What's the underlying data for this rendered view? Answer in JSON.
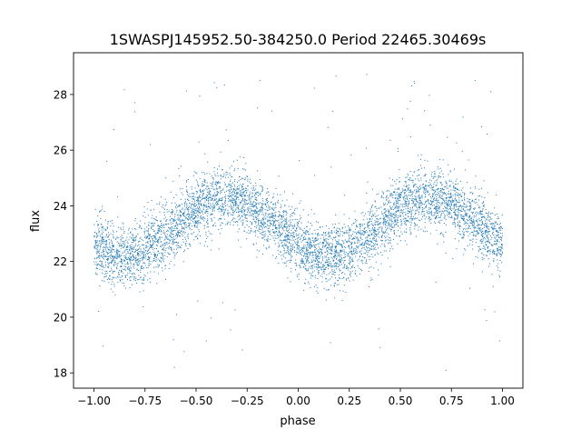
{
  "chart_data": {
    "type": "scatter",
    "title": "1SWASPJ145952.50-384250.0 Period 22465.30469s",
    "xlabel": "phase",
    "ylabel": "flux",
    "xlim": [
      -1.1,
      1.1
    ],
    "ylim": [
      17.45,
      29.5
    ],
    "xticks": [
      -1.0,
      -0.75,
      -0.5,
      -0.25,
      0.0,
      0.25,
      0.5,
      0.75,
      1.0
    ],
    "xtick_labels": [
      "−1.00",
      "−0.75",
      "−0.50",
      "−0.25",
      "0.00",
      "0.25",
      "0.50",
      "0.75",
      "1.00"
    ],
    "yticks": [
      18,
      20,
      22,
      24,
      26,
      28
    ],
    "ytick_labels": [
      "18",
      "20",
      "22",
      "24",
      "26",
      "28"
    ],
    "grid": false,
    "legend": "none",
    "point_color": "#1f77b4",
    "series_model": {
      "description": "phase-folded light curve, dense points over phase -1 to 1",
      "mean_flux": 23.25,
      "amplitude": 1.05,
      "peak_phases": [
        -0.35,
        0.65
      ],
      "min_phases": [
        -0.85,
        0.15
      ],
      "scatter_sigma": 0.55,
      "outlier_range": [
        18,
        29
      ],
      "n_points_drawn": 6000
    }
  }
}
